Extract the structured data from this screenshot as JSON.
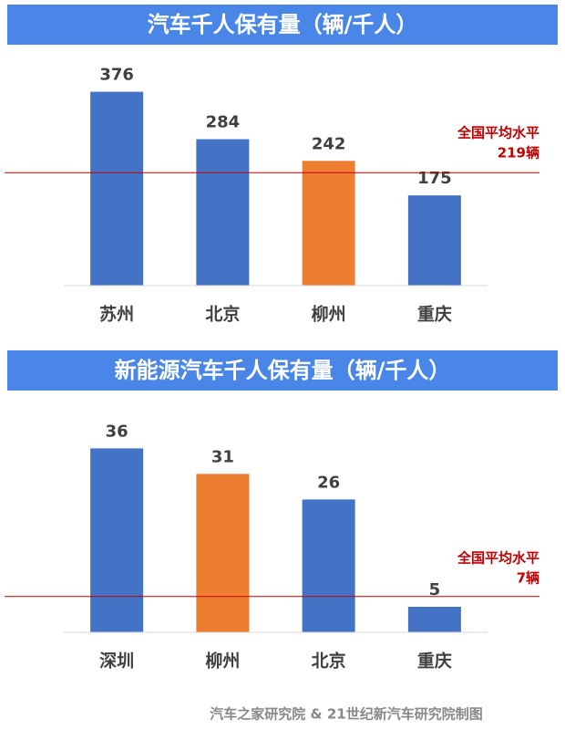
{
  "chart_data": [
    {
      "type": "bar",
      "title": "汽车千人保有量（辆/千人）",
      "categories": [
        "苏州",
        "北京",
        "柳州",
        "重庆"
      ],
      "values": [
        376,
        284,
        242,
        175
      ],
      "colors": [
        "#4472c4",
        "#4472c4",
        "#ed7d31",
        "#4472c4"
      ],
      "ylim": [
        0,
        400
      ],
      "reference_line": {
        "value": 219,
        "label": "全国平均水平",
        "value_label": "219辆",
        "color": "#c00000"
      }
    },
    {
      "type": "bar",
      "title": "新能源汽车千人保有量（辆/千人）",
      "categories": [
        "深圳",
        "柳州",
        "北京",
        "重庆"
      ],
      "values": [
        36,
        31,
        26,
        5
      ],
      "colors": [
        "#4472c4",
        "#ed7d31",
        "#4472c4",
        "#4472c4"
      ],
      "ylim": [
        0,
        40
      ],
      "reference_line": {
        "value": 7,
        "label": "全国平均水平",
        "value_label": "7辆",
        "color": "#c00000"
      }
    }
  ],
  "source": "汽车之家研究院 & 21世纪新汽车研究院制图"
}
